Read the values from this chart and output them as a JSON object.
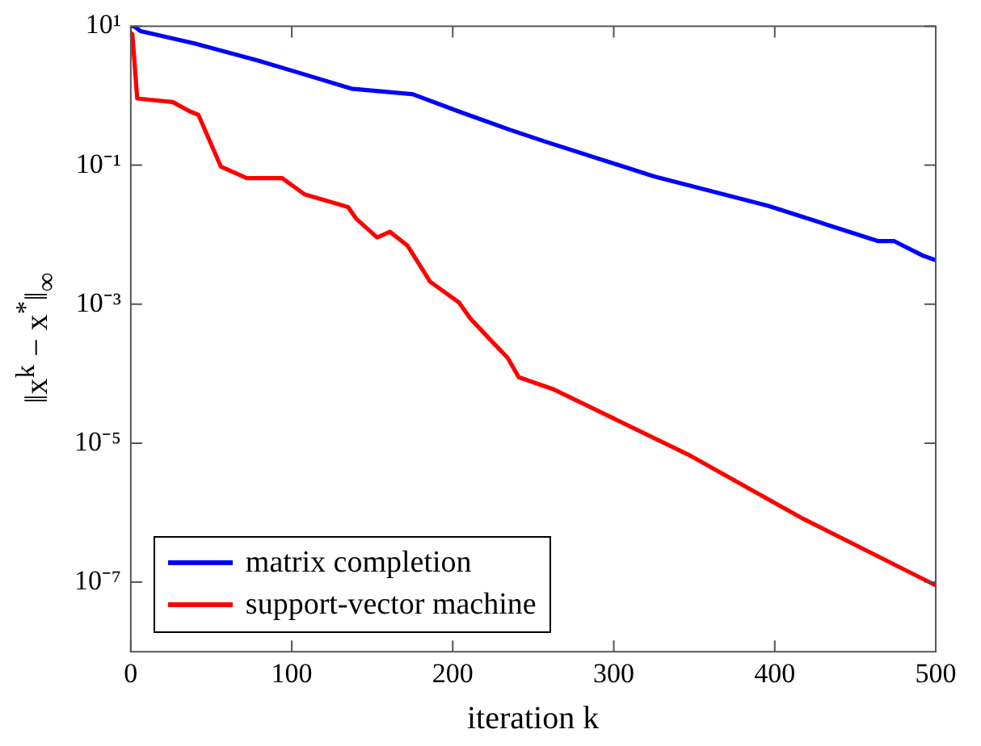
{
  "chart_data": {
    "type": "line",
    "xlabel": "iteration k",
    "ylabel": "‖x$^{k}$ − x$^{*}$‖$_{∞}$",
    "log": "y",
    "xlim": [
      0,
      500
    ],
    "xticks": [
      0,
      100,
      200,
      300,
      400,
      500
    ],
    "ylim": [
      1e-08,
      10
    ],
    "yticks": [
      {
        "value": 10,
        "label": "10¹"
      },
      {
        "value": 0.1,
        "label": "10⁻¹"
      },
      {
        "value": 0.001,
        "label": "10⁻³"
      },
      {
        "value": 1e-05,
        "label": "10⁻⁵"
      },
      {
        "value": 1e-07,
        "label": "10⁻⁷"
      }
    ],
    "legend": "bottom left",
    "marker": "none",
    "line_style": "solid",
    "series": [
      {
        "name": "matrix completion",
        "color": "#0000ff",
        "x": [
          0,
          2,
          6,
          40,
          79,
          104,
          137,
          175,
          204,
          236,
          257,
          325,
          396,
          464,
          474,
          492,
          500
        ],
        "values": [
          10,
          10,
          8.5,
          5.6,
          3.2,
          2.15,
          1.26,
          1.05,
          0.59,
          0.32,
          0.22,
          0.069,
          0.026,
          0.0081,
          0.0081,
          0.005,
          0.0043
        ]
      },
      {
        "name": "support-vector machine",
        "color": "#ff0000",
        "x": [
          0,
          1,
          4,
          26,
          37,
          42,
          56,
          72,
          94,
          108,
          135,
          140,
          153,
          161,
          172,
          186,
          204,
          211,
          225,
          234,
          241,
          263,
          346,
          418,
          500
        ],
        "values": [
          8,
          7.6,
          0.91,
          0.81,
          0.59,
          0.53,
          0.095,
          0.065,
          0.065,
          0.038,
          0.025,
          0.017,
          0.0091,
          0.011,
          0.0069,
          0.0021,
          0.00105,
          0.00062,
          0.00028,
          0.00017,
          8.9e-05,
          5.9e-05,
          6.9e-06,
          8.1e-07,
          9e-08
        ]
      }
    ]
  }
}
